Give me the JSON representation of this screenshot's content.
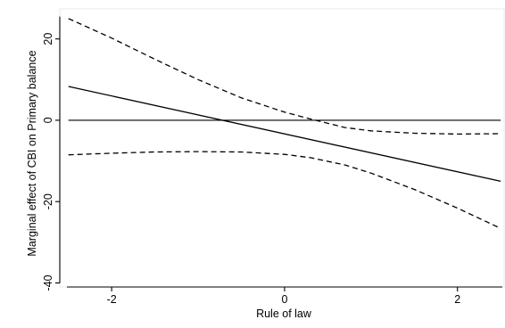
{
  "chart_data": {
    "type": "line",
    "title": "",
    "xlabel": "Rule of law",
    "ylabel": "Marginal effect of CBI on Primary balance",
    "xlim": [
      -2.6,
      2.55
    ],
    "ylim": [
      -41,
      26.5
    ],
    "xticks": [
      -2,
      0,
      2
    ],
    "yticks": [
      20,
      0,
      -20,
      -40
    ],
    "x_tick_labels": [
      "-2",
      "0",
      "2"
    ],
    "y_tick_labels": [
      "20",
      "0",
      "-20",
      "-40"
    ],
    "grid": false,
    "legend": "none",
    "series": [
      {
        "style": "solid",
        "x": [
          -2.5,
          2.5
        ],
        "y": [
          8.3,
          -15.0
        ]
      },
      {
        "style": "dashed",
        "x": [
          -2.5,
          -2.0,
          -1.5,
          -1.0,
          -0.5,
          0.0,
          0.3,
          0.7,
          1.0,
          1.5,
          2.0,
          2.5
        ],
        "y": [
          25.0,
          20.2,
          15.0,
          10.0,
          5.5,
          2.0,
          0.3,
          -1.8,
          -2.6,
          -3.2,
          -3.4,
          -3.3
        ]
      },
      {
        "style": "dashed",
        "x": [
          -2.5,
          -2.0,
          -1.5,
          -1.0,
          -0.5,
          0.0,
          0.3,
          0.7,
          1.0,
          1.5,
          2.0,
          2.5
        ],
        "y": [
          -8.5,
          -8.1,
          -7.8,
          -7.7,
          -7.8,
          -8.4,
          -9.2,
          -11.0,
          -13.0,
          -17.0,
          -21.6,
          -26.6
        ]
      }
    ],
    "reference_lines": [
      {
        "axis": "y",
        "value": 0,
        "style": "solid"
      }
    ]
  }
}
